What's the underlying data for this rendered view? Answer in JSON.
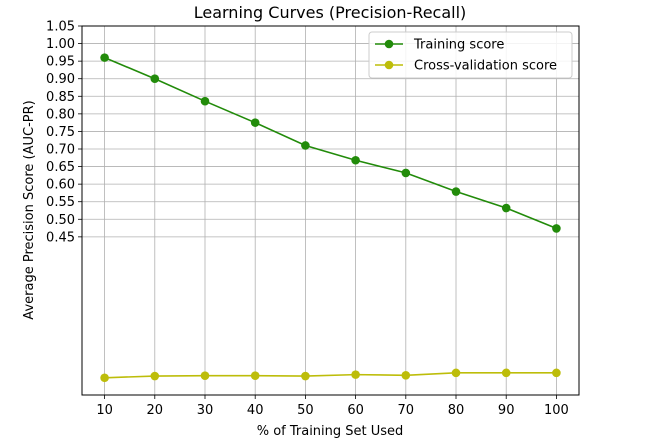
{
  "chart_data": {
    "type": "line",
    "title": "Learning Curves (Precision-Recall)",
    "xlabel": "% of Training Set Used",
    "ylabel": "Average Precision Score (AUC-PR)",
    "x": [
      10,
      20,
      30,
      40,
      50,
      60,
      70,
      80,
      90,
      100
    ],
    "xticks": [
      "10",
      "20",
      "30",
      "40",
      "50",
      "60",
      "70",
      "80",
      "90",
      "100"
    ],
    "yticks": [
      "0.45",
      "0.50",
      "0.55",
      "0.60",
      "0.65",
      "0.70",
      "0.75",
      "0.80",
      "0.85",
      "0.90",
      "0.95",
      "1.00",
      "1.05"
    ],
    "grid": true,
    "legend_position": "top-right",
    "series": [
      {
        "name": "Training score",
        "color": "#228B0A",
        "values": [
          0.96,
          0.9,
          0.836,
          0.775,
          0.71,
          0.668,
          0.632,
          0.579,
          0.532,
          0.474
        ]
      },
      {
        "name": "Cross-validation score",
        "color": "#BDBD0A",
        "values": [
          0.049,
          0.054,
          0.055,
          0.055,
          0.054,
          0.058,
          0.056,
          0.063,
          0.063,
          0.063
        ]
      }
    ]
  }
}
